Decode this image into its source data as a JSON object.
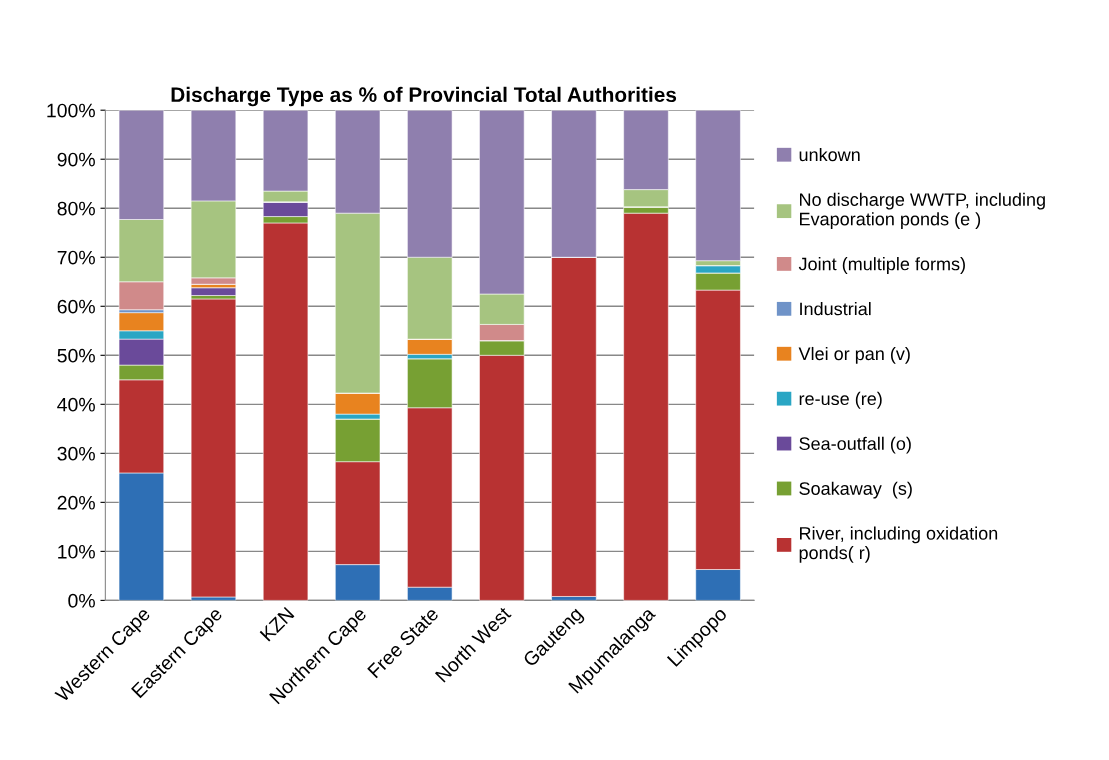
{
  "chart_data": {
    "type": "bar",
    "stacked": true,
    "title": "Discharge Type as % of Provincial Total Authorities",
    "categories": [
      "Western Cape",
      "Eastern Cape",
      "KZN",
      "Northern Cape",
      "Free State",
      "North West",
      "Gauteng",
      "Mpumalanga",
      "Limpopo"
    ],
    "series": [
      {
        "color": "#2e6fb5",
        "values": [
          26,
          0.7,
          0,
          7.3,
          2.7,
          0,
          0.8,
          0,
          6.3
        ]
      },
      {
        "name": "River, including oxidation ponds( r)",
        "color": "#b83232",
        "values": [
          19,
          60.8,
          77,
          21,
          36.6,
          50,
          69.2,
          79,
          57
        ]
      },
      {
        "name": "Soakaway  (s)",
        "color": "#77a033",
        "values": [
          3,
          0.7,
          1.3,
          8.7,
          10,
          3,
          0,
          1.3,
          3.5
        ]
      },
      {
        "name": "Sea-outfall (o)",
        "color": "#6a4a9a",
        "values": [
          5.3,
          1.6,
          3,
          0,
          0,
          0,
          0,
          0,
          0
        ]
      },
      {
        "name": "re-use (re)",
        "color": "#2aa6c4",
        "values": [
          1.7,
          0,
          0,
          1,
          0.9,
          0,
          0,
          0,
          1.5
        ]
      },
      {
        "name": "Vlei or pan (v)",
        "color": "#e8831f",
        "values": [
          3.7,
          0.7,
          0,
          4.3,
          3.1,
          0,
          0,
          0,
          0
        ]
      },
      {
        "name": "Industrial",
        "color": "#6f93c8",
        "values": [
          0.6,
          0,
          0,
          0,
          0,
          0,
          0,
          0,
          0
        ]
      },
      {
        "name": "Joint (multiple forms)",
        "color": "#d08a8a",
        "values": [
          5.7,
          1.3,
          0,
          0,
          0,
          3.3,
          0,
          0,
          0
        ]
      },
      {
        "name": "No discharge WWTP, including Evaporation ponds (e )",
        "color": "#a6c480",
        "values": [
          12.7,
          15.7,
          2.2,
          36.7,
          16.7,
          6.2,
          0,
          3.5,
          1
        ]
      },
      {
        "name": "unkown",
        "color": "#8f7fae",
        "values": [
          22.3,
          18.5,
          16.5,
          21,
          30,
          37.5,
          30,
          16.2,
          30.7
        ]
      }
    ],
    "ylim": [
      0,
      100
    ],
    "yticks": [
      {
        "value": 0,
        "label": "0%"
      },
      {
        "value": 10,
        "label": "10%"
      },
      {
        "value": 20,
        "label": "20%"
      },
      {
        "value": 30,
        "label": "30%"
      },
      {
        "value": 40,
        "label": "40%"
      },
      {
        "value": 50,
        "label": "50%"
      },
      {
        "value": 60,
        "label": "60%"
      },
      {
        "value": 70,
        "label": "70%"
      },
      {
        "value": 80,
        "label": "80%"
      },
      {
        "value": 90,
        "label": "90%"
      },
      {
        "value": 100,
        "label": "100%"
      }
    ],
    "grid": "y",
    "legend": "right"
  }
}
